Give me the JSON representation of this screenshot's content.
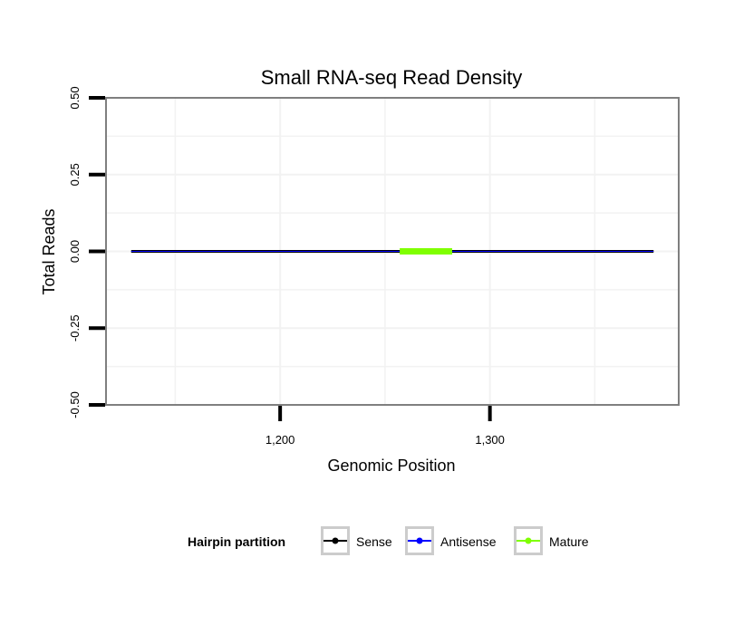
{
  "chart_data": {
    "type": "line",
    "title": "Small RNA-seq Read Density",
    "xlabel": "Genomic Position",
    "ylabel": "Total Reads",
    "xlim": [
      1117,
      1390
    ],
    "ylim": [
      -0.5,
      0.5
    ],
    "x_ticks": [
      1200,
      1300
    ],
    "x_tick_labels": [
      "1,200",
      "1,300"
    ],
    "y_ticks": [
      -0.5,
      -0.25,
      0,
      0.25,
      0.5
    ],
    "y_tick_labels": [
      "-0.50",
      "-0.25",
      "0.00",
      "0.25",
      "0.50"
    ],
    "grid": true,
    "legend": {
      "position": "bottom",
      "title": "Hairpin partition",
      "entries": [
        {
          "label": "Sense",
          "color": "#000000"
        },
        {
          "label": "Antisense",
          "color": "#0000ff"
        },
        {
          "label": "Mature",
          "color": "#7fff00"
        }
      ]
    },
    "series": [
      {
        "name": "Sense",
        "color": "#000000",
        "width": 3,
        "x": [
          1129,
          1378
        ],
        "y": [
          0,
          0
        ]
      },
      {
        "name": "Antisense",
        "color": "#0000ff",
        "width": 1,
        "x": [
          1129,
          1378
        ],
        "y": [
          0,
          0
        ]
      },
      {
        "name": "Mature",
        "color": "#7fff00",
        "width": 7,
        "x": [
          1257,
          1282
        ],
        "y": [
          0,
          0
        ]
      }
    ]
  }
}
